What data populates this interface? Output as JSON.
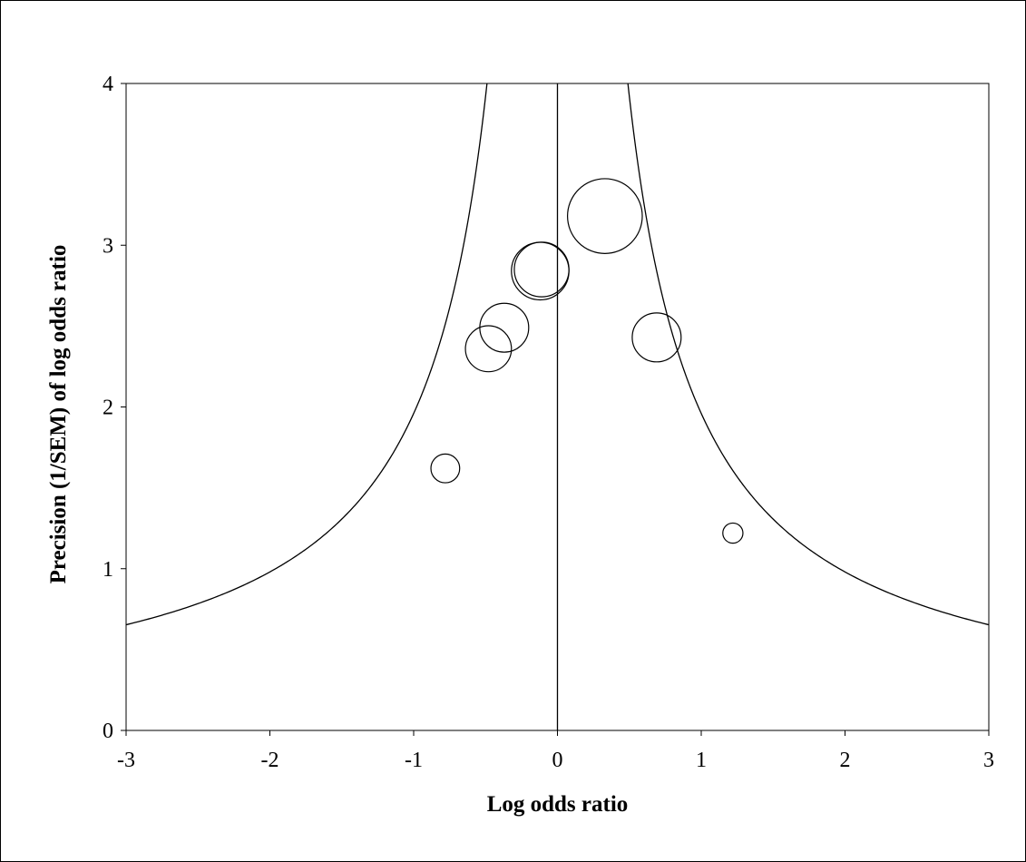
{
  "chart_data": {
    "type": "scatter",
    "title": "",
    "xlabel": "Log odds ratio",
    "ylabel": "Precision (1/SEM) of log odds ratio",
    "xlim": [
      -3,
      3
    ],
    "ylim": [
      0,
      4
    ],
    "x_ticks": [
      "-3",
      "-2",
      "-1",
      "0",
      "1",
      "2",
      "3"
    ],
    "y_ticks": [
      "0",
      "1",
      "2",
      "3",
      "4"
    ],
    "grid": false,
    "legend": "none",
    "reference_line_x": 0,
    "funnel_multiplier": 1.96,
    "funnel_precision_min": 0.4,
    "points": [
      {
        "x": -0.78,
        "y": 1.62,
        "size": 0.1
      },
      {
        "x": -0.48,
        "y": 2.36,
        "size": 0.16
      },
      {
        "x": -0.37,
        "y": 2.49,
        "size": 0.17
      },
      {
        "x": -0.12,
        "y": 2.84,
        "size": 0.2
      },
      {
        "x": -0.11,
        "y": 2.85,
        "size": 0.19
      },
      {
        "x": 0.33,
        "y": 3.18,
        "size": 0.26
      },
      {
        "x": 0.69,
        "y": 2.43,
        "size": 0.17
      },
      {
        "x": 1.22,
        "y": 1.22,
        "size": 0.07
      }
    ],
    "line_color": "#000000",
    "marker_fill": "none"
  }
}
